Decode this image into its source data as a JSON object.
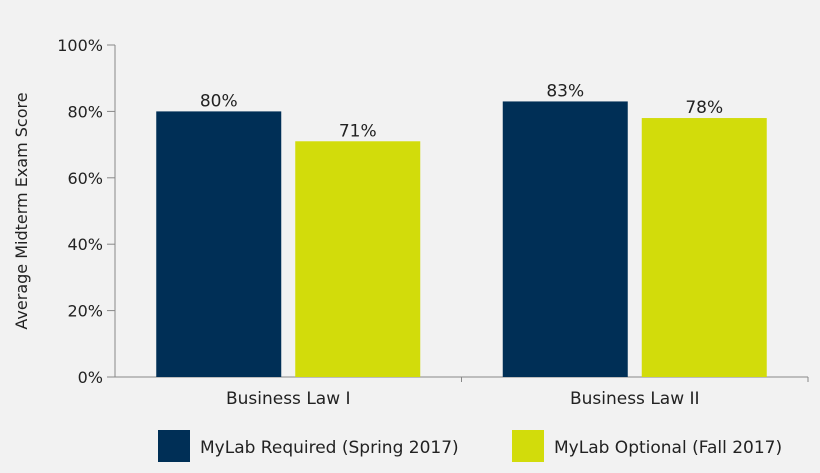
{
  "chart_data": {
    "type": "bar",
    "categories": [
      "Business Law I",
      "Business Law II"
    ],
    "series": [
      {
        "name": "MyLab Required (Spring 2017)",
        "values": [
          80,
          83
        ],
        "labels": [
          "80%",
          "83%"
        ],
        "color": "#002f56"
      },
      {
        "name": "MyLab Optional (Fall 2017)",
        "values": [
          71,
          78
        ],
        "labels": [
          "71%",
          "78%"
        ],
        "color": "#d2dc0b"
      }
    ],
    "ylabel": "Average Midterm Exam Score",
    "xlabel": "",
    "ylim": [
      0,
      100
    ],
    "yticks": [
      0,
      20,
      40,
      60,
      80,
      100
    ],
    "ytick_labels": [
      "0%",
      "20%",
      "40%",
      "60%",
      "80%",
      "100%"
    ],
    "grid": false,
    "legend_position": "bottom"
  }
}
